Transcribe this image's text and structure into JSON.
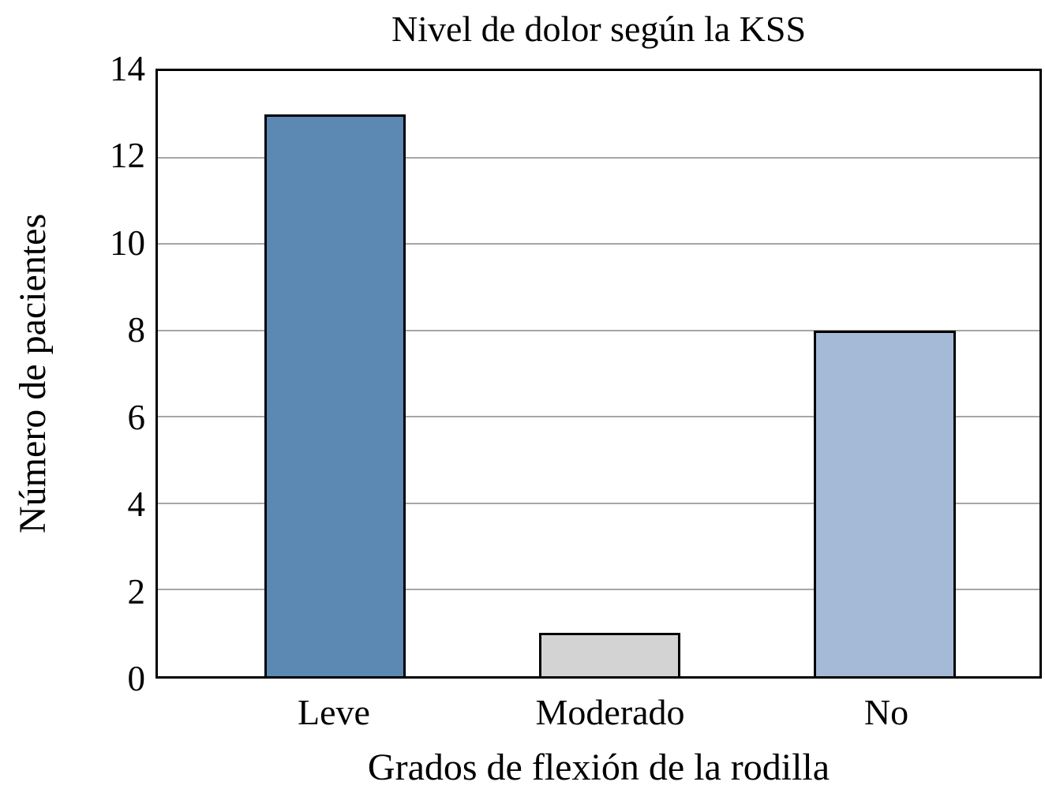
{
  "chart_data": {
    "type": "bar",
    "title": "Nivel de dolor según la KSS",
    "xlabel": "Grados de flexión de la rodilla",
    "ylabel": "Número de pacientes",
    "categories": [
      "Leve",
      "Moderado",
      "No"
    ],
    "values": [
      13,
      1,
      8
    ],
    "ylim": [
      0,
      14
    ],
    "yticks": [
      0,
      2,
      4,
      6,
      8,
      10,
      12,
      14
    ],
    "grid": "horizontal-gridlines-at-even-values",
    "legend": "none",
    "bar_colors": [
      "#5c88b4",
      "#d3d3d3",
      "#a4bad6"
    ],
    "gridline_color": "#a6a6a6",
    "axis_color": "#000000",
    "background_color": "#ffffff"
  }
}
